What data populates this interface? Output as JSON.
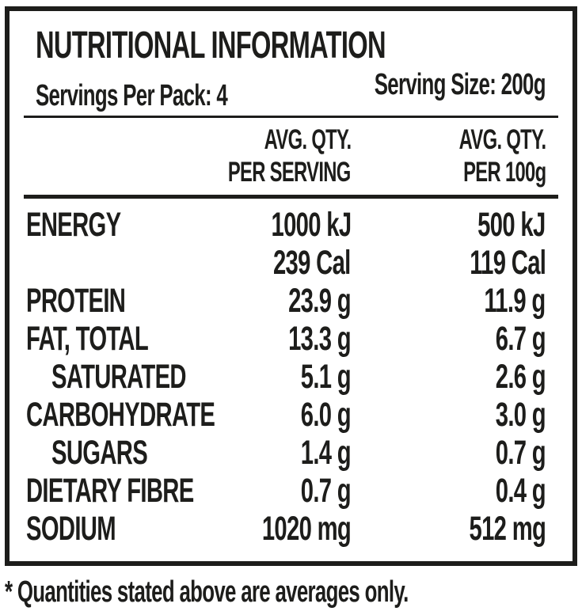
{
  "page": {
    "background_color": "#ffffff",
    "text_color": "#1d1d1b"
  },
  "label": {
    "title": "NUTRITIONAL INFORMATION",
    "servings_per_pack": "Servings Per Pack: 4",
    "serving_size": "Serving Size: 200g",
    "column_headers": {
      "per_serving_line1": "AVG. QTY.",
      "per_serving_line2": "PER SERVING",
      "per_100g_line1": "AVG. QTY.",
      "per_100g_line2": "PER 100g"
    },
    "rows": [
      {
        "name": "ENERGY",
        "per_serving": "1000 kJ",
        "per_100g": "500 kJ"
      },
      {
        "name": "",
        "per_serving": "239 Cal",
        "per_100g": "119 Cal"
      },
      {
        "name": "PROTEIN",
        "per_serving": "23.9 g",
        "per_100g": "11.9 g"
      },
      {
        "name": "FAT, TOTAL",
        "per_serving": "13.3 g",
        "per_100g": "6.7 g"
      },
      {
        "name": "SATURATED",
        "per_serving": "5.1 g",
        "per_100g": "2.6 g"
      },
      {
        "name": "CARBOHYDRATE",
        "per_serving": "6.0 g",
        "per_100g": "3.0 g"
      },
      {
        "name": "SUGARS",
        "per_serving": "1.4 g",
        "per_100g": "0.7 g"
      },
      {
        "name": "DIETARY FIBRE",
        "per_serving": "0.7 g",
        "per_100g": "0.4 g"
      },
      {
        "name": "SODIUM",
        "per_serving": "1020 mg",
        "per_100g": "512 mg"
      }
    ],
    "footnote": "* Quantities stated above are averages only."
  }
}
